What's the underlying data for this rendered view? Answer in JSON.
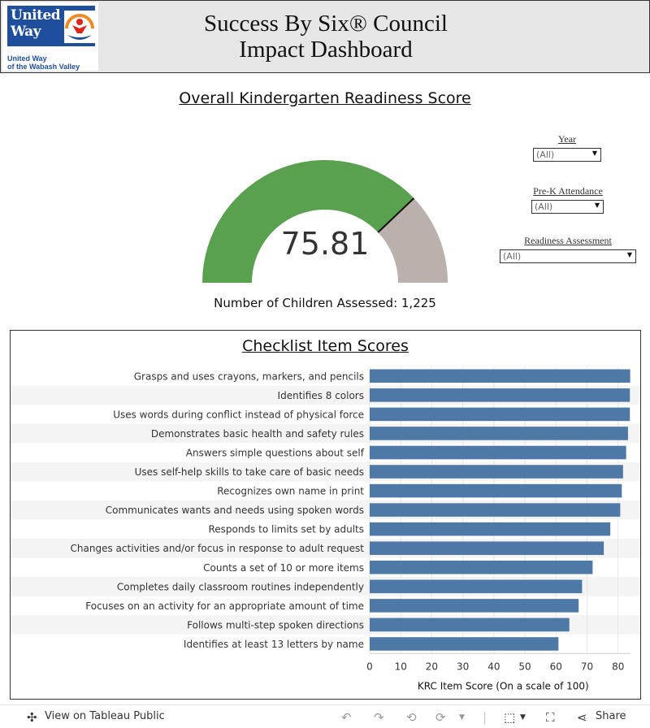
{
  "header": {
    "logo_line1": "United",
    "logo_line2": "Way",
    "logo_sub_line1": "United Way",
    "logo_sub_line2": "of the Wabash Valley",
    "title_line1": "Success By Six® Council",
    "title_line2": "Impact Dashboard"
  },
  "gauge": {
    "title": "Overall Kindergarten Readiness Score",
    "value": "75.81",
    "value_num": 75.81,
    "max": 100,
    "children_assessed": "Number of Children Assessed: 1,225",
    "colors": {
      "filled": "#59a14f",
      "remainder": "#bab0ac",
      "marker": "#111111"
    }
  },
  "filters": [
    {
      "label": "Year",
      "value": "(All)"
    },
    {
      "label": "Pre-K Attendance",
      "value": "(All)"
    },
    {
      "label": "Readiness Assessment",
      "value": "(All)"
    }
  ],
  "chart_data": {
    "type": "bar",
    "orientation": "horizontal",
    "title": "Checklist Item Scores",
    "xlabel": "KRC Item Score (On a scale of 100)",
    "xlim": [
      0,
      84
    ],
    "xticks": [
      0,
      10,
      20,
      30,
      40,
      50,
      60,
      70,
      80
    ],
    "grid": true,
    "bar_color": "#4e79a7",
    "categories": [
      "Grasps and uses crayons, markers, and pencils",
      "Identifies 8 colors",
      "Uses words during conflict instead of physical force",
      "Demonstrates basic health and safety rules",
      "Answers simple questions about self",
      "Uses self-help skills to take care of basic needs",
      "Recognizes own name in print",
      "Communicates wants and needs using spoken words",
      "Responds to limits set by adults",
      "Changes activities and/or focus in response to adult request",
      "Counts a set of 10 or more items",
      "Completes daily classroom routines independently",
      "Focuses on an activity for an appropriate amount of time",
      "Follows multi-step spoken directions",
      "Identifies at least 13 letters by name"
    ],
    "values": [
      83.9,
      83.8,
      83.8,
      83.2,
      82.6,
      81.6,
      81.2,
      80.7,
      77.5,
      75.4,
      71.8,
      68.4,
      67.3,
      64.3,
      60.8
    ]
  },
  "footer": {
    "view_label": "View on Tableau Public",
    "share_label": "Share"
  }
}
